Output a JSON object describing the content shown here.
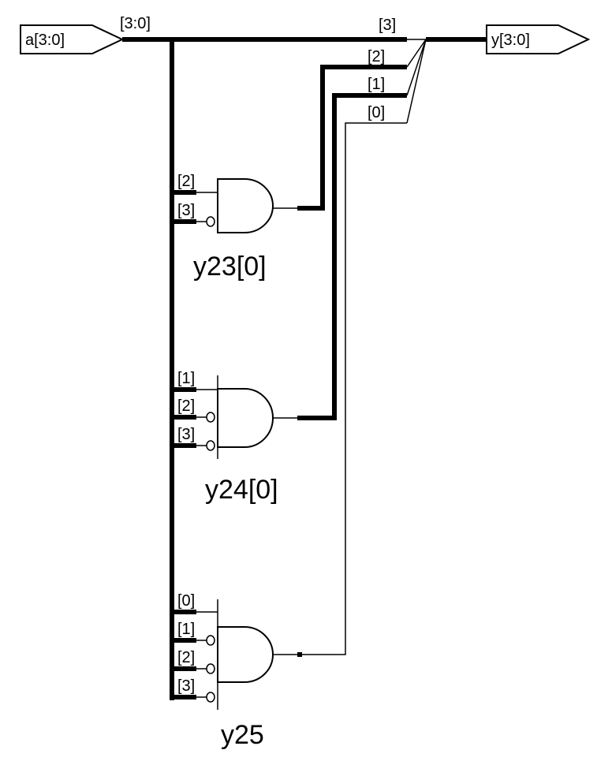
{
  "input_port": {
    "label": "a[3:0]"
  },
  "output_port": {
    "label": "y[3:0]"
  },
  "bus": {
    "label": "[3:0]"
  },
  "output_taps": [
    "[3]",
    "[2]",
    "[1]",
    "[0]"
  ],
  "gates": [
    {
      "name": "y23[0]",
      "inputs": [
        "[2]",
        "[3]"
      ]
    },
    {
      "name": "y24[0]",
      "inputs": [
        "[1]",
        "[2]",
        "[3]"
      ]
    },
    {
      "name": "y25",
      "inputs": [
        "[0]",
        "[1]",
        "[2]",
        "[3]"
      ]
    }
  ]
}
